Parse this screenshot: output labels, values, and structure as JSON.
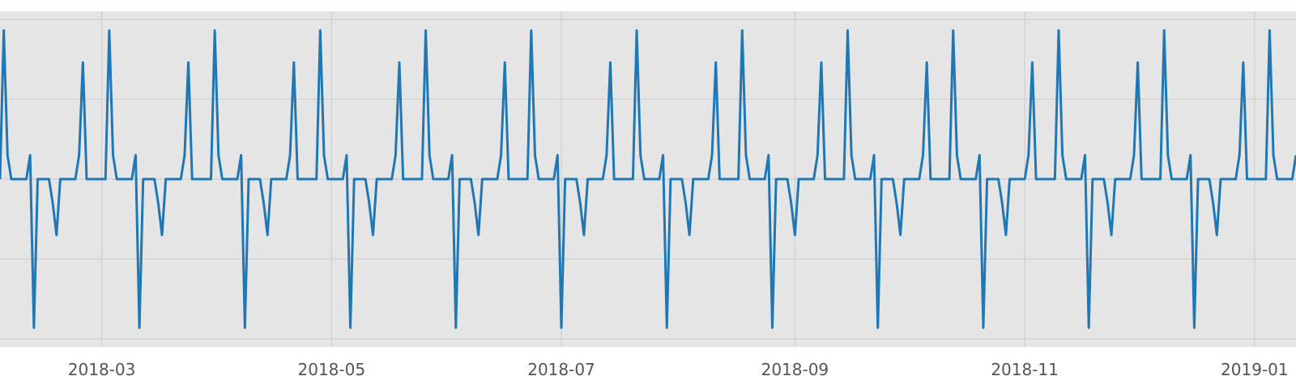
{
  "chart_data": {
    "type": "line",
    "title": "",
    "xlabel": "",
    "ylabel": "",
    "x_axis": "date",
    "x_range": [
      "2018-02-02",
      "2019-01-12"
    ],
    "y_range": [
      -1.05,
      1.05
    ],
    "y_gridlines": [
      -1,
      -0.5,
      0,
      0.5,
      1
    ],
    "y_tick_labels_visible": false,
    "grid": true,
    "background": "#e5e5e5",
    "line_color": "#1f77b4",
    "x_ticks": [
      {
        "date": "2018-03-01",
        "label": "2018-03"
      },
      {
        "date": "2018-05-01",
        "label": "2018-05"
      },
      {
        "date": "2018-07-01",
        "label": "2018-07"
      },
      {
        "date": "2018-09-01",
        "label": "2018-09"
      },
      {
        "date": "2018-11-01",
        "label": "2018-11"
      },
      {
        "date": "2019-01-01",
        "label": "2019-01"
      }
    ],
    "series": [
      {
        "cycle_days": 28,
        "cycle_start": "2018-02-03",
        "cycle_values": [
          0.93,
          0.15,
          0,
          0,
          0,
          0,
          0,
          0.15,
          -0.93,
          0,
          0,
          0,
          0,
          -0.15,
          -0.35,
          0,
          0,
          0,
          0,
          0,
          0.15,
          0.73,
          0,
          0,
          0,
          0,
          0,
          0
        ]
      }
    ]
  }
}
